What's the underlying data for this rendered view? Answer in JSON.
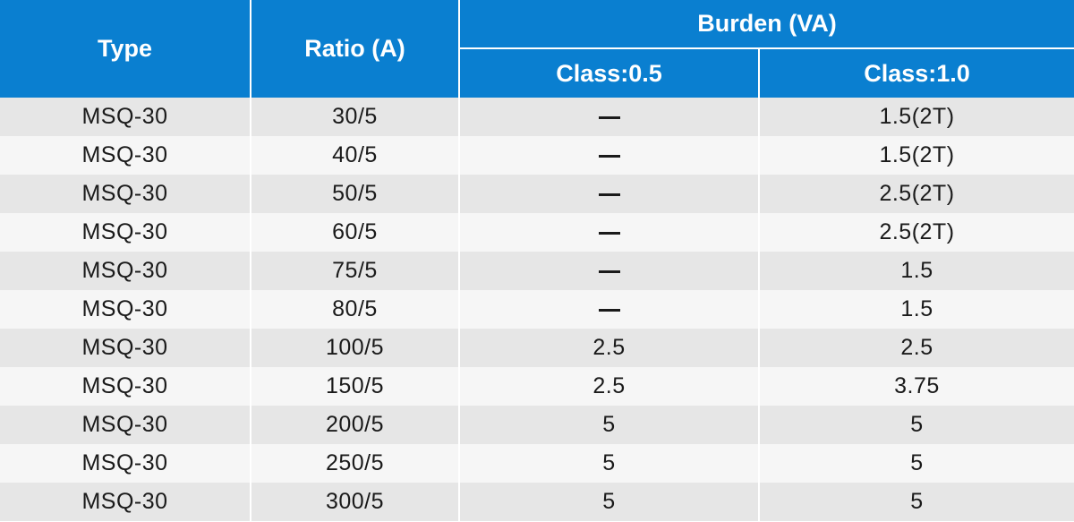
{
  "headers": {
    "type": "Type",
    "ratio": "Ratio (A)",
    "burden": "Burden (VA)",
    "class_05": "Class:0.5",
    "class_10": "Class:1.0"
  },
  "rows": [
    {
      "type": "MSQ-30",
      "ratio": "30/5",
      "class_05": "—",
      "class_10": "1.5(2T)"
    },
    {
      "type": "MSQ-30",
      "ratio": "40/5",
      "class_05": "—",
      "class_10": "1.5(2T)"
    },
    {
      "type": "MSQ-30",
      "ratio": "50/5",
      "class_05": "—",
      "class_10": "2.5(2T)"
    },
    {
      "type": "MSQ-30",
      "ratio": "60/5",
      "class_05": "—",
      "class_10": "2.5(2T)"
    },
    {
      "type": "MSQ-30",
      "ratio": "75/5",
      "class_05": "—",
      "class_10": "1.5"
    },
    {
      "type": "MSQ-30",
      "ratio": "80/5",
      "class_05": "—",
      "class_10": "1.5"
    },
    {
      "type": "MSQ-30",
      "ratio": "100/5",
      "class_05": "2.5",
      "class_10": "2.5"
    },
    {
      "type": "MSQ-30",
      "ratio": "150/5",
      "class_05": "2.5",
      "class_10": "3.75"
    },
    {
      "type": "MSQ-30",
      "ratio": "200/5",
      "class_05": "5",
      "class_10": "5"
    },
    {
      "type": "MSQ-30",
      "ratio": "250/5",
      "class_05": "5",
      "class_10": "5"
    },
    {
      "type": "MSQ-30",
      "ratio": "300/5",
      "class_05": "5",
      "class_10": "5"
    }
  ],
  "colors": {
    "header_bg": "#0a7fd0",
    "row_odd": "#e6e6e6",
    "row_even": "#f6f6f6"
  }
}
